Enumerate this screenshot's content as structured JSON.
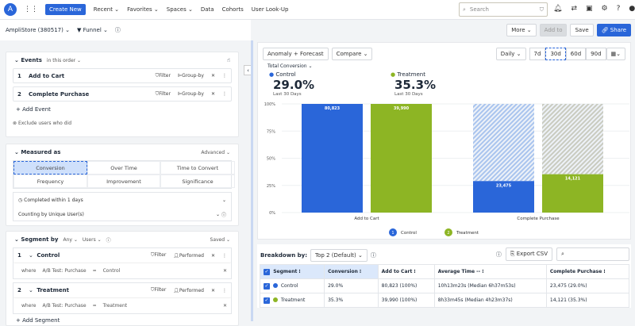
{
  "topbar": {
    "create": "Create New",
    "nav": [
      "Recent ⌄",
      "Favorites ⌄",
      "Spaces ⌄",
      "Data",
      "Cohorts",
      "User Look-Up"
    ],
    "search_placeholder": "Search"
  },
  "subbar": {
    "project": "AmpliStore (380517) ⌄",
    "chart_type": "Funnel ⌄",
    "more": "More ⌄",
    "add_to": "Add to",
    "save": "Save",
    "share": "Share"
  },
  "events": {
    "title": "Events",
    "order": "in this order ⌄",
    "items": [
      {
        "num": "1",
        "name": "Add to Cart"
      },
      {
        "num": "2",
        "name": "Complete Purchase"
      }
    ],
    "filter": "Filter",
    "group_by": "Group-by",
    "add": "+ Add Event",
    "exclude": "Exclude users who did"
  },
  "measured": {
    "title": "Measured as",
    "advanced": "Advanced ⌄",
    "options": [
      "Conversion",
      "Over Time",
      "Time to Convert",
      "Frequency",
      "Improvement",
      "Significance"
    ],
    "completed": "Completed within 1 days",
    "counting": "Counting by Unique User(s)"
  },
  "segments": {
    "title": "Segment by",
    "any": "Any ⌄",
    "users": "Users ⌄",
    "saved": "Saved ⌄",
    "filter": "Filter",
    "performed": "Performed",
    "where": "where",
    "prop": "A/B Test: Purchase",
    "eq": "=",
    "items": [
      {
        "num": "1",
        "name": "Control",
        "value": "Control"
      },
      {
        "num": "2",
        "name": "Treatment",
        "value": "Treatment"
      }
    ],
    "add": "+ Add Segment"
  },
  "chart_controls": {
    "anomaly": "Anomaly + Forecast",
    "compare": "Compare ⌄",
    "interval": "Daily ⌄",
    "ranges": [
      "7d",
      "30d",
      "60d",
      "90d"
    ],
    "active_range": "30d",
    "metric": "Total Conversion ⌄"
  },
  "summary": [
    {
      "name": "Control",
      "value": "29.0%",
      "period": "Last 30 Days",
      "color": "#2a66d9"
    },
    {
      "name": "Treatment",
      "value": "35.3%",
      "period": "Last 30 Days",
      "color": "#8db524"
    }
  ],
  "chart_data": {
    "type": "bar",
    "categories": [
      "Add to Cart",
      "Complete Purchase"
    ],
    "ylim": [
      0,
      100
    ],
    "yticks": [
      "0%",
      "25%",
      "50%",
      "75%",
      "100%"
    ],
    "grid": true,
    "legend_placement": "bottom",
    "series": [
      {
        "name": "Control",
        "color": "#2a66d9",
        "values": [
          100,
          29.0
        ],
        "labels": [
          "80,823",
          "23,475"
        ]
      },
      {
        "name": "Treatment",
        "color": "#8db524",
        "values": [
          100,
          35.3
        ],
        "labels": [
          "39,990",
          "14,121"
        ]
      }
    ]
  },
  "breakdown": {
    "label": "Breakdown by:",
    "select": "Top 2 (Default) ⌄",
    "export": "Export CSV",
    "headers": [
      "Segment",
      "Conversion",
      "Add to Cart",
      "Average Time -- ",
      "Complete Purchase"
    ],
    "rows": [
      {
        "segment": "Control",
        "color": "#2a66d9",
        "conversion": "29.0%",
        "add": "80,823 (100%)",
        "time": "10h13m23s (Median 6h37m53s)",
        "complete": "23,475 (29.0%)"
      },
      {
        "segment": "Treatment",
        "color": "#8db524",
        "conversion": "35.3%",
        "add": "39,990 (100%)",
        "time": "8h33m45s (Median 4h23m37s)",
        "complete": "14,121 (35.3%)"
      }
    ]
  }
}
